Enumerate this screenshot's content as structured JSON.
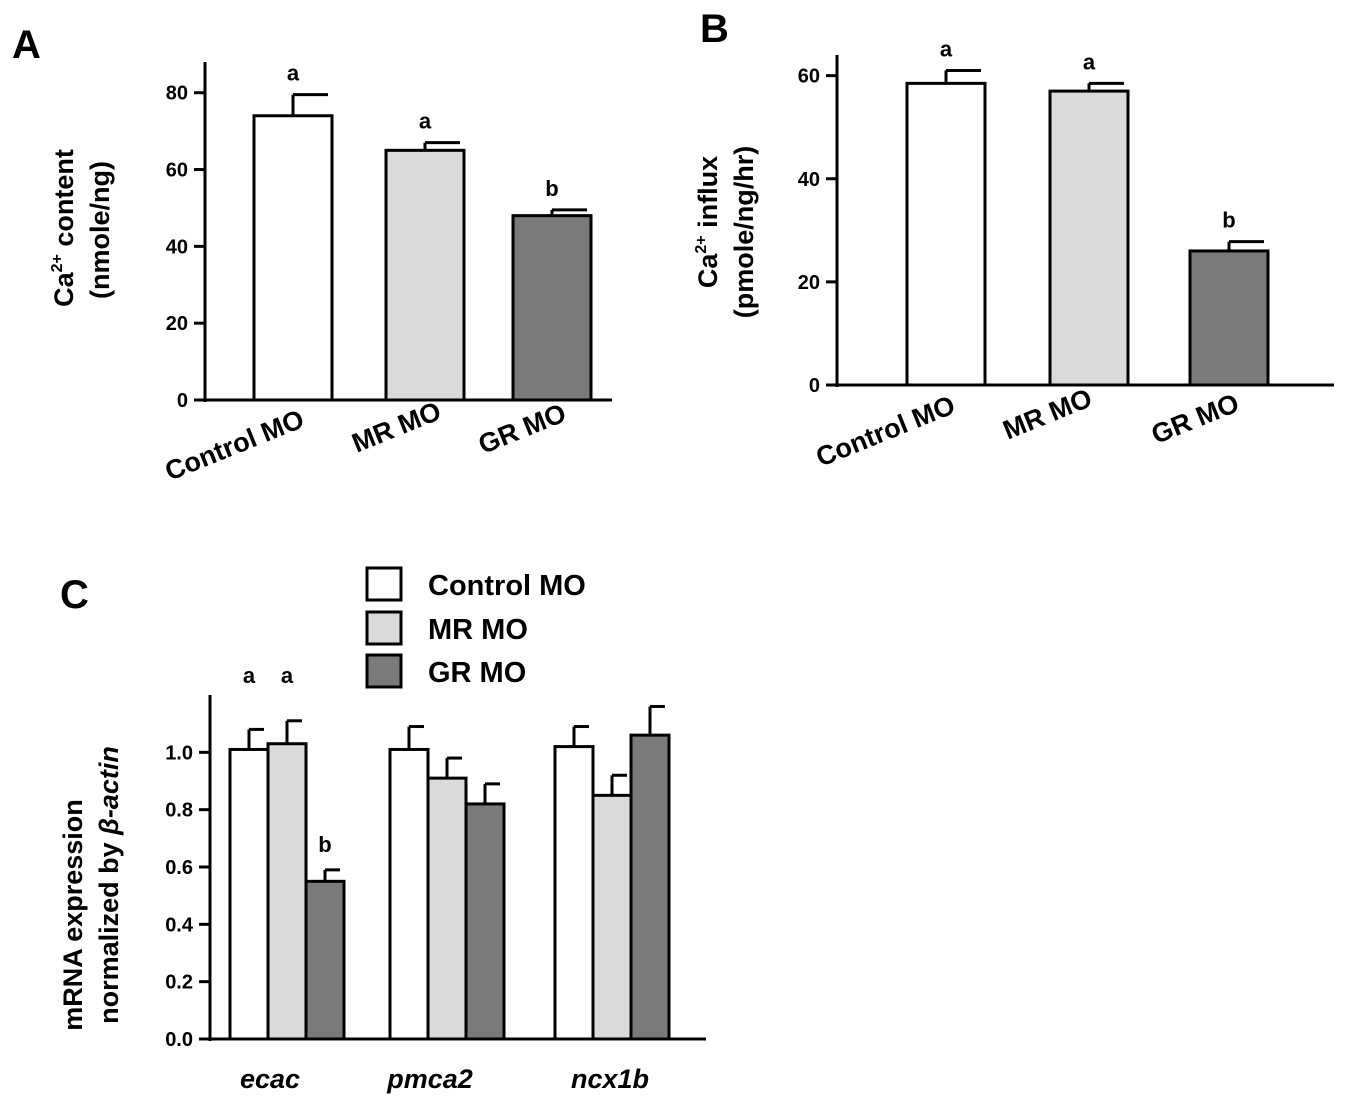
{
  "colors": {
    "control": "#ffffff",
    "mr": "#dadada",
    "gr": "#7a7a7a",
    "stroke": "#000000"
  },
  "chart_data": [
    {
      "panel": "A",
      "type": "bar",
      "categories": [
        "Control  MO",
        "MR MO",
        "GR MO"
      ],
      "values": [
        74,
        65,
        48
      ],
      "errors": [
        5.5,
        2,
        1.5
      ],
      "significance": [
        "a",
        "a",
        "b"
      ],
      "ylabel_line1_main": "Ca",
      "ylabel_line1_sup": "2+",
      "ylabel_line1_rest": " content",
      "ylabel_line2": "(nmole/ng)",
      "ylim": [
        0,
        88
      ],
      "yticks": [
        "0",
        "20",
        "40",
        "60",
        "80"
      ],
      "grid": false
    },
    {
      "panel": "B",
      "type": "bar",
      "categories": [
        "Control  MO",
        "MR MO",
        "GR MO"
      ],
      "values": [
        58.5,
        57,
        26
      ],
      "errors": [
        2.5,
        1.5,
        1.8
      ],
      "significance": [
        "a",
        "a",
        "b"
      ],
      "ylabel_line1_main": "Ca",
      "ylabel_line1_sup": "2+",
      "ylabel_line1_rest": " influx",
      "ylabel_line2": "(pmole/ng/hr)",
      "ylim": [
        0,
        64
      ],
      "yticks": [
        "0",
        "20",
        "40",
        "60"
      ],
      "grid": false
    },
    {
      "panel": "C",
      "type": "bar",
      "categories": [
        "ecac",
        "pmca2",
        "ncx1b"
      ],
      "series": [
        {
          "name": "Control MO",
          "values": [
            1.01,
            1.01,
            1.02
          ],
          "errors": [
            0.07,
            0.08,
            0.07
          ]
        },
        {
          "name": "MR MO",
          "values": [
            1.03,
            0.91,
            0.85
          ],
          "errors": [
            0.08,
            0.07,
            0.07
          ]
        },
        {
          "name": "GR MO",
          "values": [
            0.55,
            0.82,
            1.06
          ],
          "errors": [
            0.04,
            0.07,
            0.1
          ]
        }
      ],
      "significance": {
        "ecac": [
          "a",
          "a",
          "b"
        ]
      },
      "ylabel_line1": "mRNA expression",
      "ylabel_line2_prefix": "normalized by ",
      "ylabel_line2_italic": "β-actin",
      "ylim": [
        0,
        1.2
      ],
      "yticks": [
        "0.0",
        "0.2",
        "0.4",
        "0.6",
        "0.8",
        "1.0"
      ],
      "legend_position": "top",
      "grid": false
    }
  ]
}
